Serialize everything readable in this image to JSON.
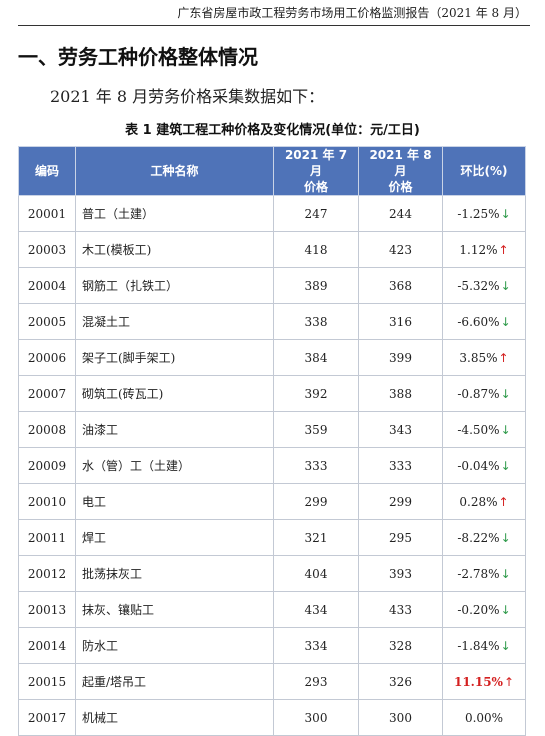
{
  "header": {
    "report_title": "广东省房屋市政工程劳务市场用工价格监测报告（2021 年 8 月）"
  },
  "section": {
    "title": "一、劳务工种价格整体情况",
    "intro": "2021 年 8 月劳务价格采集数据如下："
  },
  "table": {
    "caption": "表 1  建筑工程工种价格及变化情况(单位：元/工日)",
    "headers": {
      "code": "编码",
      "name": "工种名称",
      "jul_line1": "2021 年 7 月",
      "jul_line2": "价格",
      "aug_line1": "2021 年 8 月",
      "aug_line2": "价格",
      "change": "环比(%)"
    },
    "rows": [
      {
        "code": "20001",
        "name": "普工（土建）",
        "jul": "247",
        "aug": "244",
        "change": "-1.25%",
        "arrow": "↓",
        "dir": "down"
      },
      {
        "code": "20003",
        "name": "木工(模板工)",
        "jul": "418",
        "aug": "423",
        "change": "1.12%",
        "arrow": "↑",
        "dir": "up"
      },
      {
        "code": "20004",
        "name": "钢筋工（扎铁工）",
        "jul": "389",
        "aug": "368",
        "change": "-5.32%",
        "arrow": "↓",
        "dir": "down"
      },
      {
        "code": "20005",
        "name": "混凝土工",
        "jul": "338",
        "aug": "316",
        "change": "-6.60%",
        "arrow": "↓",
        "dir": "down"
      },
      {
        "code": "20006",
        "name": "架子工(脚手架工)",
        "jul": "384",
        "aug": "399",
        "change": "3.85%",
        "arrow": "↑",
        "dir": "up"
      },
      {
        "code": "20007",
        "name": "砌筑工(砖瓦工)",
        "jul": "392",
        "aug": "388",
        "change": "-0.87%",
        "arrow": "↓",
        "dir": "down"
      },
      {
        "code": "20008",
        "name": "油漆工",
        "jul": "359",
        "aug": "343",
        "change": "-4.50%",
        "arrow": "↓",
        "dir": "down"
      },
      {
        "code": "20009",
        "name": "水（管）工（土建）",
        "jul": "333",
        "aug": "333",
        "change": "-0.04%",
        "arrow": "↓",
        "dir": "down"
      },
      {
        "code": "20010",
        "name": "电工",
        "jul": "299",
        "aug": "299",
        "change": "0.28%",
        "arrow": "↑",
        "dir": "up"
      },
      {
        "code": "20011",
        "name": "焊工",
        "jul": "321",
        "aug": "295",
        "change": "-8.22%",
        "arrow": "↓",
        "dir": "down"
      },
      {
        "code": "20012",
        "name": "批荡抹灰工",
        "jul": "404",
        "aug": "393",
        "change": "-2.78%",
        "arrow": "↓",
        "dir": "down"
      },
      {
        "code": "20013",
        "name": "抹灰、镶贴工",
        "jul": "434",
        "aug": "433",
        "change": "-0.20%",
        "arrow": "↓",
        "dir": "down"
      },
      {
        "code": "20014",
        "name": "防水工",
        "jul": "334",
        "aug": "328",
        "change": "-1.84%",
        "arrow": "↓",
        "dir": "down"
      },
      {
        "code": "20015",
        "name": "起重/塔吊工",
        "jul": "293",
        "aug": "326",
        "change": "11.15%",
        "arrow": "↑",
        "dir": "up",
        "highlight": true
      },
      {
        "code": "20017",
        "name": "机械工",
        "jul": "300",
        "aug": "300",
        "change": "0.00%",
        "arrow": "",
        "dir": "none"
      }
    ]
  },
  "colors": {
    "header_bg": "#4f73b8",
    "down_arrow": "#2e9a4a",
    "up_arrow": "#d42020",
    "highlight": "#d42020"
  }
}
